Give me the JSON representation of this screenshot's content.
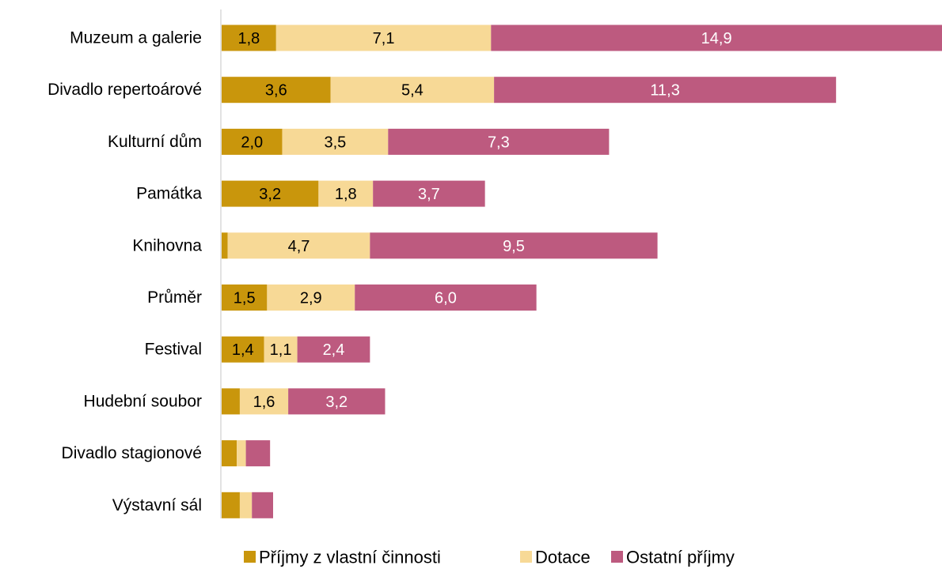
{
  "chart_data": {
    "type": "bar",
    "orientation": "horizontal",
    "stacked": true,
    "categories": [
      "Muzeum a galerie",
      "Divadlo repertoárové",
      "Kulturní dům",
      "Památka",
      "Knihovna",
      "Průměr",
      "Festival",
      "Hudební soubor",
      "Divadlo stagionové",
      "Výstavní sál"
    ],
    "series": [
      {
        "name": "Příjmy z vlastní činnosti",
        "color": "#C9960C",
        "values": [
          1.8,
          3.6,
          2.0,
          3.2,
          0.2,
          1.5,
          1.4,
          0.6,
          0.5,
          0.6
        ],
        "labels": [
          "1,8",
          "3,6",
          "2,0",
          "3,2",
          "",
          "1,5",
          "1,4",
          "",
          "",
          ""
        ]
      },
      {
        "name": "Dotace",
        "color": "#F7D996",
        "values": [
          7.1,
          5.4,
          3.5,
          1.8,
          4.7,
          2.9,
          1.1,
          1.6,
          0.3,
          0.4
        ],
        "labels": [
          "7,1",
          "5,4",
          "3,5",
          "1,8",
          "4,7",
          "2,9",
          "1,1",
          "1,6",
          "",
          ""
        ]
      },
      {
        "name": "Ostatní příjmy",
        "color": "#BD5A7F",
        "values": [
          14.9,
          11.3,
          7.3,
          3.7,
          9.5,
          6.0,
          2.4,
          3.2,
          0.8,
          0.7
        ],
        "labels": [
          "14,9",
          "11,3",
          "7,3",
          "3,7",
          "9,5",
          "6,0",
          "2,4",
          "3,2",
          "",
          ""
        ]
      }
    ],
    "xlim": [
      0,
      23.8
    ],
    "grid": false,
    "legend_position": "bottom"
  }
}
